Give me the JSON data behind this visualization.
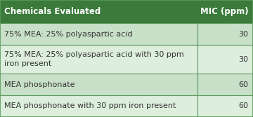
{
  "header": [
    "Chemicals Evaluated",
    "MIC (ppm)"
  ],
  "rows": [
    [
      "75% MEA: 25% polyaspartic acid",
      "30"
    ],
    [
      "75% MEA: 25% polyaspartic acid with 30 ppm\niron present",
      "30"
    ],
    [
      "MEA phosphonate",
      "60"
    ],
    [
      "MEA phosphonate with 30 ppm iron present",
      "60"
    ]
  ],
  "header_bg": "#3a7a3a",
  "header_text": "#ffffff",
  "row_bg_odd": "#c8dfc8",
  "row_bg_even": "#ddeedd",
  "row_text": "#333333",
  "border_color": "#5a9a5a",
  "col_split": 0.78,
  "header_fontsize": 8.5,
  "row_fontsize": 8.0,
  "fig_bg": "#ffffff"
}
